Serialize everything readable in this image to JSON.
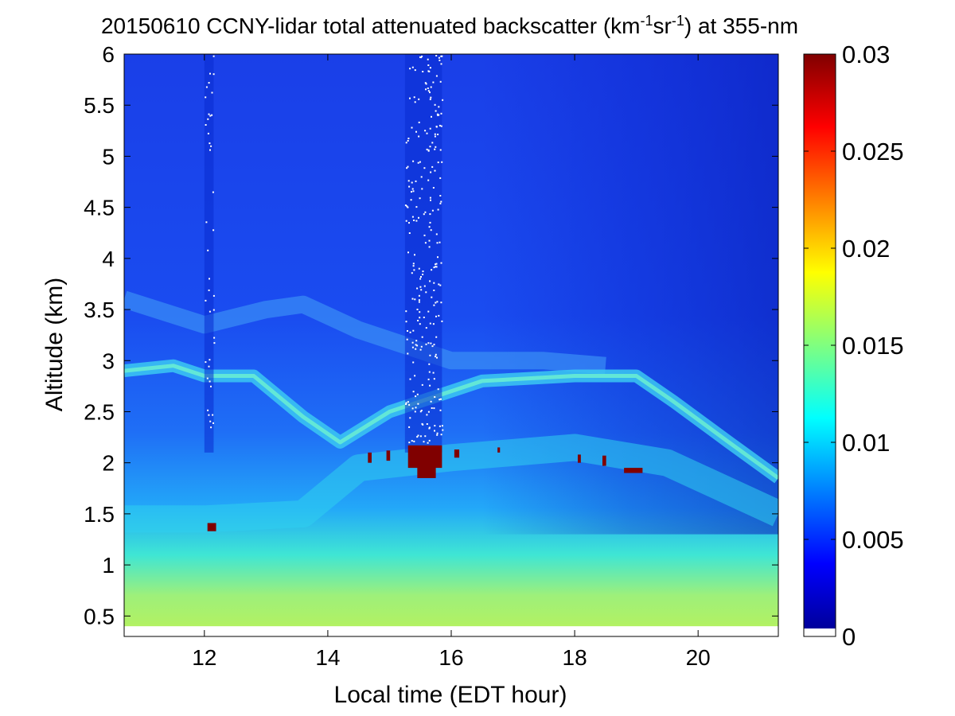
{
  "chart_data": {
    "type": "heatmap",
    "title_main": "20150610 CCNY-lidar total attenuated backscatter (km",
    "title_sup1": "-1",
    "title_mid": "sr",
    "title_sup2": "-1",
    "title_end": ") at 355-nm",
    "xlabel": "Local time (EDT hour)",
    "ylabel": "Altitude (km)",
    "xlim": [
      10.7,
      21.3
    ],
    "ylim": [
      0.3,
      6.0
    ],
    "xticks": [
      12,
      14,
      16,
      18,
      20
    ],
    "yticks": [
      0.5,
      1,
      1.5,
      2,
      2.5,
      3,
      3.5,
      4,
      4.5,
      5,
      5.5,
      6
    ],
    "colorbar": {
      "ticks": [
        0,
        0.005,
        0.01,
        0.015,
        0.02,
        0.025,
        0.03
      ],
      "range": [
        0,
        0.03
      ],
      "colormap": "jet",
      "masked_color": "#ffffff"
    },
    "data_gap": {
      "x_start": 10.7,
      "x_end": 21.3,
      "y_bottom": 0.3,
      "y_top": 0.4
    },
    "features": {
      "boundary_layer_top": [
        [
          10.7,
          1.45
        ],
        [
          12.0,
          1.45
        ],
        [
          13.6,
          1.5
        ],
        [
          14.5,
          1.95
        ],
        [
          16.0,
          2.05
        ],
        [
          18.0,
          2.15
        ],
        [
          19.5,
          2.0
        ],
        [
          21.3,
          1.5
        ]
      ],
      "aerosol_layer": [
        [
          10.7,
          2.9
        ],
        [
          11.5,
          2.95
        ],
        [
          12.0,
          2.85
        ],
        [
          12.8,
          2.85
        ],
        [
          13.6,
          2.45
        ],
        [
          14.2,
          2.2
        ],
        [
          15.0,
          2.5
        ],
        [
          16.5,
          2.8
        ],
        [
          18.0,
          2.85
        ],
        [
          19.0,
          2.85
        ],
        [
          19.6,
          2.6
        ],
        [
          20.5,
          2.2
        ],
        [
          21.3,
          1.85
        ]
      ],
      "upper_layer": [
        [
          10.7,
          3.6
        ],
        [
          12.0,
          3.35
        ],
        [
          13.0,
          3.5
        ],
        [
          13.6,
          3.55
        ],
        [
          14.5,
          3.3
        ],
        [
          16.0,
          3.0
        ],
        [
          17.5,
          3.0
        ],
        [
          18.5,
          2.95
        ]
      ],
      "cloud_patches": [
        {
          "x": 12.05,
          "y": 1.33,
          "w": 0.14,
          "h": 0.08
        },
        {
          "x": 14.65,
          "y": 2.0,
          "w": 0.06,
          "h": 0.1
        },
        {
          "x": 14.95,
          "y": 2.02,
          "w": 0.06,
          "h": 0.1
        },
        {
          "x": 15.3,
          "y": 1.95,
          "w": 0.55,
          "h": 0.22
        },
        {
          "x": 15.45,
          "y": 1.85,
          "w": 0.3,
          "h": 0.12
        },
        {
          "x": 16.05,
          "y": 2.05,
          "w": 0.08,
          "h": 0.08
        },
        {
          "x": 16.75,
          "y": 2.1,
          "w": 0.04,
          "h": 0.05
        },
        {
          "x": 18.05,
          "y": 2.0,
          "w": 0.05,
          "h": 0.08
        },
        {
          "x": 18.45,
          "y": 1.97,
          "w": 0.06,
          "h": 0.1
        },
        {
          "x": 18.8,
          "y": 1.9,
          "w": 0.3,
          "h": 0.05
        }
      ],
      "noise_columns": [
        [
          12.0,
          12.15
        ],
        [
          15.25,
          15.85
        ]
      ]
    }
  }
}
